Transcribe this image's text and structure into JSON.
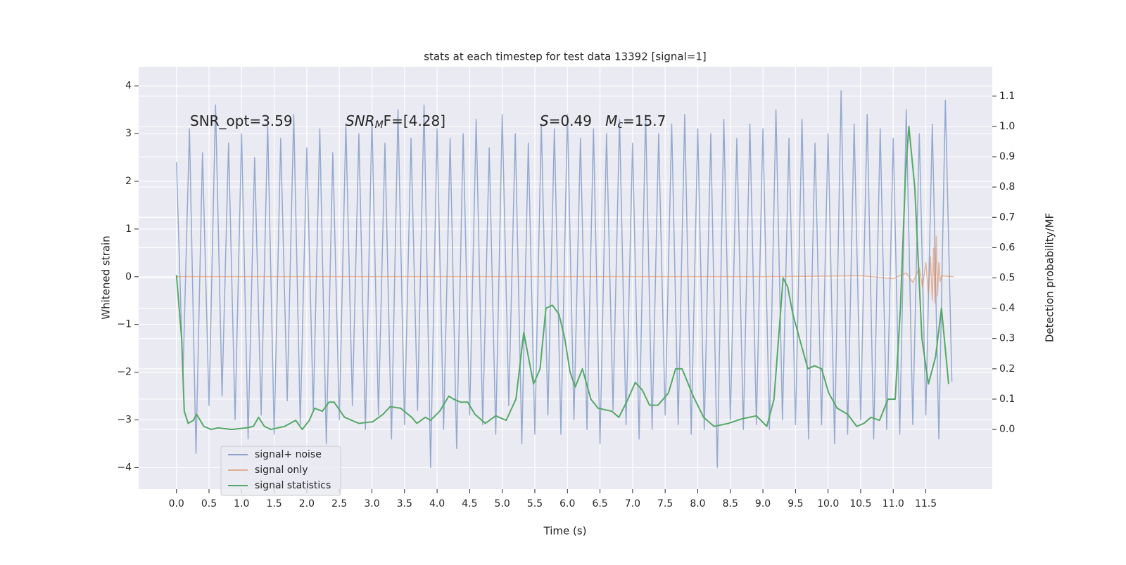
{
  "chart_data": {
    "type": "line",
    "title": "stats at each timestep for test data 13392 [signal=1]",
    "xlabel": "Time (s)",
    "ylabel": "Whitened strain",
    "y2label": "Detection probability/MF",
    "xlim": [
      -0.58,
      12.52
    ],
    "ylim": [
      -4.45,
      4.4
    ],
    "y2lim": [
      -0.197,
      1.197
    ],
    "grid": true,
    "legend": "lower left",
    "xticks": [
      {
        "value": 0,
        "label": "0.0"
      },
      0.5,
      {
        "value": 1,
        "label": "1.0"
      },
      1.5,
      {
        "value": 2,
        "label": "2.0"
      },
      2.5,
      {
        "value": 3,
        "label": "3.0"
      },
      3.5,
      {
        "value": 4,
        "label": "4.0"
      },
      4.5,
      {
        "value": 5,
        "label": "5.0"
      },
      5.5,
      {
        "value": 6,
        "label": "6.0"
      },
      6.5,
      {
        "value": 7,
        "label": "7.0"
      },
      7.5,
      {
        "value": 8,
        "label": "8.0"
      },
      8.5,
      {
        "value": 9,
        "label": "9.0"
      },
      9.5,
      {
        "value": 10,
        "label": "10.0"
      },
      10.5,
      {
        "value": 11,
        "label": "11.0"
      },
      11.5
    ],
    "yticks": [
      {
        "value": -4,
        "label": "−4"
      },
      {
        "value": -3,
        "label": "−3"
      },
      {
        "value": -2,
        "label": "−2"
      },
      {
        "value": -1,
        "label": "−1"
      },
      0,
      1,
      2,
      3,
      4
    ],
    "y2ticks": [
      {
        "value": 0,
        "label": "0.0"
      },
      0.1,
      0.2,
      0.3,
      0.4,
      0.5,
      0.6,
      0.7,
      0.8,
      0.9,
      {
        "value": 1,
        "label": "1.0"
      },
      1.1
    ],
    "annotations": [
      [
        {
          "text": "SNR_opt=3.59"
        }
      ],
      [
        {
          "text": "SNR",
          "style": "italic"
        },
        {
          "text": "M",
          "style": "italic",
          "sub": true
        },
        {
          "text": "F=[4.28]"
        }
      ],
      [
        {
          "text": "S",
          "style": "italic"
        },
        {
          "text": "=0.49   "
        },
        {
          "text": "M",
          "style": "italic"
        },
        {
          "text": "c",
          "style": "italic",
          "sub": true
        },
        {
          "text": "=15.7"
        }
      ]
    ],
    "series": [
      {
        "name": "signal+ noise",
        "color": "#4c72b0",
        "x": [
          0,
          0.1,
          0.2,
          0.3,
          0.4,
          0.5,
          0.6,
          0.7,
          0.8,
          0.9,
          1,
          1.1,
          1.2,
          1.3,
          1.4,
          1.5,
          1.6,
          1.7,
          1.8,
          1.9,
          2,
          2.1,
          2.2,
          2.3,
          2.4,
          2.5,
          2.6,
          2.7,
          2.8,
          2.9,
          3,
          3.1,
          3.2,
          3.3,
          3.4,
          3.5,
          3.6,
          3.7,
          3.8,
          3.9,
          4,
          4.1,
          4.2,
          4.3,
          4.4,
          4.5,
          4.6,
          4.7,
          4.8,
          4.9,
          5,
          5.1,
          5.2,
          5.3,
          5.4,
          5.5,
          5.6,
          5.7,
          5.8,
          5.9,
          6,
          6.1,
          6.2,
          6.3,
          6.4,
          6.5,
          6.6,
          6.7,
          6.8,
          6.9,
          7,
          7.1,
          7.2,
          7.3,
          7.4,
          7.5,
          7.6,
          7.7,
          7.8,
          7.9,
          8,
          8.1,
          8.2,
          8.3,
          8.4,
          8.5,
          8.6,
          8.7,
          8.8,
          8.9,
          9,
          9.1,
          9.2,
          9.3,
          9.4,
          9.5,
          9.6,
          9.7,
          9.8,
          9.9,
          10,
          10.1,
          10.2,
          10.3,
          10.4,
          10.5,
          10.6,
          10.7,
          10.8,
          10.9,
          11,
          11.1,
          11.2,
          11.3,
          11.4,
          11.5,
          11.6,
          11.7,
          11.8,
          11.9
        ],
        "values": [
          2.4,
          -2.1,
          3.1,
          -3.7,
          2.6,
          -2.7,
          3.6,
          -2.5,
          2.8,
          -3.0,
          3.0,
          -3.4,
          2.5,
          -2.9,
          3.2,
          -3.3,
          2.9,
          -2.6,
          3.4,
          -3.1,
          2.7,
          -2.8,
          3.1,
          -3.5,
          2.6,
          -3.0,
          3.2,
          -2.7,
          3.0,
          -3.2,
          3.3,
          -2.9,
          2.8,
          -3.4,
          3.5,
          -3.1,
          2.9,
          -2.8,
          3.6,
          -4.0,
          3.1,
          -3.2,
          2.9,
          -3.6,
          3.0,
          -2.9,
          3.3,
          -3.1,
          2.7,
          -3.3,
          3.4,
          -2.7,
          3.0,
          -3.5,
          2.8,
          -3.3,
          3.2,
          -2.9,
          3.1,
          -3.3,
          3.4,
          -3.0,
          2.9,
          -3.2,
          3.1,
          -3.5,
          3.0,
          -2.8,
          3.3,
          -3.1,
          2.8,
          -3.4,
          3.4,
          -3.2,
          3.0,
          -2.9,
          3.2,
          -3.1,
          3.4,
          -3.3,
          3.1,
          -3.2,
          3.0,
          -4.0,
          3.3,
          -3.0,
          2.9,
          -3.2,
          3.2,
          -3.1,
          3.1,
          -3.2,
          3.5,
          -3.0,
          2.9,
          -3.1,
          3.3,
          -3.4,
          2.8,
          -3.1,
          3.0,
          -3.5,
          3.9,
          -3.3,
          3.2,
          -3.0,
          3.4,
          -3.4,
          3.1,
          -3.2,
          2.9,
          -3.3,
          3.5,
          -3.1,
          3.0,
          -2.9,
          3.2,
          -3.4,
          3.7,
          -2.2
        ]
      },
      {
        "name": "signal only",
        "color": "#dd8452",
        "x": [
          0,
          9.0,
          10.5,
          11.0,
          11.2,
          11.3,
          11.4,
          11.45,
          11.5,
          11.54,
          11.57,
          11.6,
          11.62,
          11.64,
          11.66,
          11.68,
          11.7,
          11.72,
          11.74,
          11.93
        ],
        "values": [
          0,
          0,
          0.02,
          -0.04,
          0.08,
          -0.12,
          0.18,
          -0.22,
          0.3,
          -0.35,
          0.42,
          -0.5,
          0.6,
          -0.55,
          0.85,
          -0.4,
          0.3,
          -0.1,
          0.02,
          0
        ]
      },
      {
        "name": "signal statistics",
        "color": "#55a868",
        "axis": "y2",
        "x": [
          0,
          0.08,
          0.12,
          0.18,
          0.26,
          0.31,
          0.42,
          0.53,
          0.64,
          0.85,
          1.07,
          1.18,
          1.26,
          1.35,
          1.45,
          1.66,
          1.83,
          1.93,
          2.04,
          2.12,
          2.24,
          2.34,
          2.42,
          2.58,
          2.8,
          3.01,
          3.17,
          3.28,
          3.44,
          3.61,
          3.69,
          3.82,
          3.9,
          4.04,
          4.18,
          4.25,
          4.36,
          4.47,
          4.58,
          4.74,
          4.9,
          5.06,
          5.21,
          5.33,
          5.48,
          5.58,
          5.67,
          5.77,
          5.87,
          5.96,
          6.04,
          6.12,
          6.23,
          6.36,
          6.47,
          6.68,
          6.79,
          6.93,
          7.04,
          7.15,
          7.26,
          7.39,
          7.55,
          7.66,
          7.76,
          7.93,
          8.09,
          8.25,
          8.47,
          8.68,
          8.9,
          9.06,
          9.17,
          9.31,
          9.38,
          9.46,
          9.6,
          9.69,
          9.79,
          9.9,
          10.01,
          10.14,
          10.3,
          10.44,
          10.55,
          10.66,
          10.79,
          10.92,
          11.03,
          11.11,
          11.19,
          11.24,
          11.33,
          11.44,
          11.54,
          11.65,
          11.74,
          11.85
        ],
        "values": [
          0.51,
          0.3,
          0.06,
          0.02,
          0.03,
          0.05,
          0.01,
          0.0,
          0.005,
          0.0,
          0.005,
          0.01,
          0.04,
          0.01,
          0.0,
          0.01,
          0.03,
          0.0,
          0.03,
          0.07,
          0.06,
          0.09,
          0.09,
          0.04,
          0.02,
          0.025,
          0.05,
          0.075,
          0.07,
          0.04,
          0.02,
          0.04,
          0.03,
          0.06,
          0.11,
          0.1,
          0.09,
          0.09,
          0.05,
          0.02,
          0.045,
          0.03,
          0.1,
          0.32,
          0.15,
          0.2,
          0.4,
          0.41,
          0.38,
          0.3,
          0.19,
          0.14,
          0.2,
          0.1,
          0.07,
          0.06,
          0.04,
          0.1,
          0.155,
          0.13,
          0.08,
          0.08,
          0.12,
          0.2,
          0.2,
          0.11,
          0.04,
          0.01,
          0.02,
          0.035,
          0.045,
          0.01,
          0.1,
          0.5,
          0.47,
          0.38,
          0.27,
          0.2,
          0.21,
          0.2,
          0.12,
          0.07,
          0.05,
          0.01,
          0.02,
          0.04,
          0.03,
          0.1,
          0.1,
          0.4,
          0.85,
          1.0,
          0.8,
          0.3,
          0.15,
          0.24,
          0.4,
          0.15
        ]
      }
    ]
  }
}
